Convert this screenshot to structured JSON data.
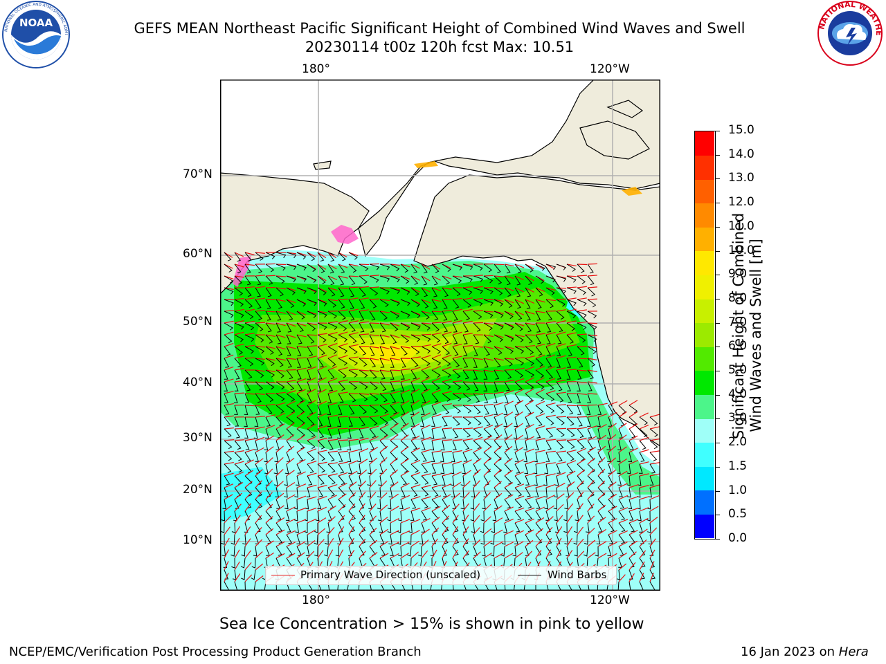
{
  "title": {
    "line1": "GEFS MEAN Northeast Pacific Significant Height of Combined Wind Waves and Swell",
    "line2": "20230114 t00z 120h fcst   Max: 10.51"
  },
  "logos": {
    "left": {
      "text": "NOAA",
      "ring_text": "NATIONAL OCEANIC AND ATMOSPHERIC ADMINISTRATION · U.S. DEPARTMENT OF COMMERCE",
      "color": "#1f4fa8"
    },
    "right": {
      "ring_text": "NATIONAL WEATHER SERVICE",
      "color": "#d9001b"
    }
  },
  "map": {
    "lon_labels_top": [
      "180°",
      "120°W"
    ],
    "lon_labels_bottom": [
      "180°",
      "120°W"
    ],
    "lat_labels": [
      "70°N",
      "60°N",
      "50°N",
      "40°N",
      "30°N",
      "20°N",
      "10°N"
    ],
    "colors": {
      "land": "#efecdc",
      "grid": "#b0b0b0",
      "coast": "#000000",
      "wave_arrow": "#e81010",
      "wind_barb": "#000000"
    }
  },
  "legend": {
    "wave_label": "Primary Wave Direction (unscaled)",
    "wind_label": "Wind Barbs"
  },
  "colorbar": {
    "label_line1": "Significant Height of Combined",
    "label_line2": "Wind Waves and Swell [m]",
    "ticks": [
      "15.0",
      "14.0",
      "13.0",
      "12.0",
      "11.0",
      "10.0",
      "9.0",
      "8.0",
      "7.0",
      "6.0",
      "5.0",
      "4.0",
      "3.0",
      "2.0",
      "1.5",
      "1.0",
      "0.5",
      "0.0"
    ],
    "colors": [
      "#0000ff",
      "#0070ff",
      "#00e8ff",
      "#40ffff",
      "#9ffff8",
      "#4cf58a",
      "#00e800",
      "#52ea00",
      "#9cea00",
      "#c8f000",
      "#f0f000",
      "#ffe800",
      "#ffb000",
      "#ff8a00",
      "#ff6000",
      "#ff3000",
      "#ff0000"
    ]
  },
  "caption": "Sea Ice Concentration > 15% is shown in pink to yellow",
  "footer": {
    "left": "NCEP/EMC/Verification Post Processing Product Generation Branch",
    "right_prefix": "16 Jan 2023 on ",
    "right_host": "Hera"
  }
}
